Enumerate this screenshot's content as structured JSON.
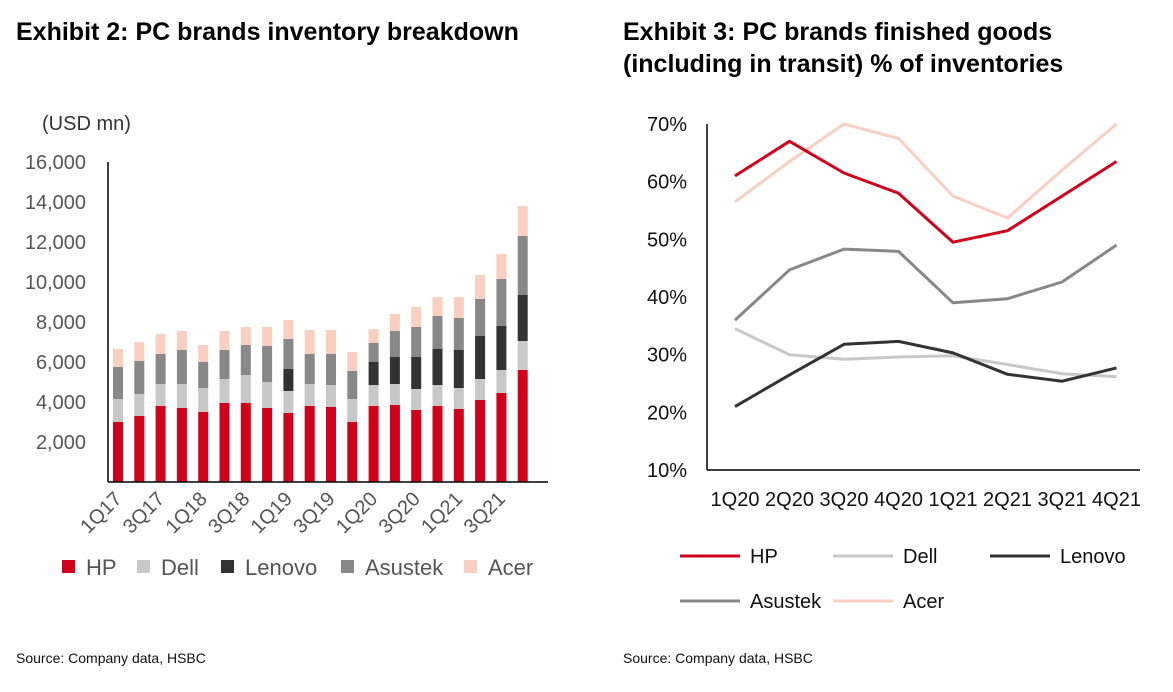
{
  "exhibit2": {
    "title": "Exhibit 2: PC brands inventory breakdown",
    "source": "Source: Company data, HSBC",
    "unit_label": "(USD mn)"
  },
  "exhibit3": {
    "title_line1": "Exhibit 3: PC brands finished goods",
    "title_line2": "(including in transit) % of inventories",
    "source": "Source: Company data, HSBC"
  },
  "colors": {
    "HP": "#d0021b",
    "Dell": "#c8c8c8",
    "Lenovo": "#333333",
    "Asustek": "#888888",
    "Acer": "#f9cfc2"
  },
  "chart_data": [
    {
      "type": "bar",
      "stacked": true,
      "ylabel": "(USD mn)",
      "ylim": [
        0,
        16000
      ],
      "yticks": [
        2000,
        4000,
        6000,
        8000,
        10000,
        12000,
        14000,
        16000
      ],
      "ytick_labels": [
        "2,000",
        "4,000",
        "6,000",
        "8,000",
        "10,000",
        "12,000",
        "14,000",
        "16,000"
      ],
      "categories": [
        "1Q17",
        "2Q17",
        "3Q17",
        "4Q17",
        "1Q18",
        "2Q18",
        "3Q18",
        "4Q18",
        "1Q19",
        "2Q19",
        "3Q19",
        "4Q19",
        "1Q20",
        "2Q20",
        "3Q20",
        "4Q20",
        "1Q21",
        "2Q21",
        "3Q21",
        "4Q21"
      ],
      "xtick_labels": [
        "1Q17",
        "",
        "3Q17",
        "",
        "1Q18",
        "",
        "3Q18",
        "",
        "1Q19",
        "",
        "3Q19",
        "",
        "1Q20",
        "",
        "3Q20",
        "",
        "1Q21",
        "",
        "3Q21",
        ""
      ],
      "series": [
        {
          "name": "HP",
          "values": [
            3000,
            3300,
            3800,
            3700,
            3500,
            3950,
            3950,
            3700,
            3450,
            3800,
            3750,
            3000,
            3800,
            3850,
            3600,
            3800,
            3650,
            4100,
            4450,
            5600
          ]
        },
        {
          "name": "Dell",
          "values": [
            1150,
            1100,
            1100,
            1200,
            1200,
            1200,
            1400,
            1300,
            1100,
            1100,
            1100,
            1150,
            1050,
            1050,
            1050,
            1050,
            1050,
            1050,
            1150,
            1450
          ]
        },
        {
          "name": "Lenovo",
          "values": [
            0,
            0,
            0,
            0,
            0,
            0,
            0,
            0,
            1100,
            0,
            0,
            0,
            1150,
            1350,
            1600,
            1800,
            1900,
            2150,
            2200,
            2300
          ]
        },
        {
          "name": "Asustek",
          "values": [
            1600,
            1650,
            1500,
            1700,
            1300,
            1450,
            1500,
            1800,
            1500,
            1500,
            1550,
            1400,
            950,
            1300,
            1500,
            1650,
            1600,
            1850,
            2350,
            2950
          ]
        },
        {
          "name": "Acer",
          "values": [
            900,
            950,
            1000,
            950,
            850,
            950,
            900,
            950,
            950,
            1200,
            1200,
            950,
            700,
            850,
            1000,
            950,
            1050,
            1200,
            1250,
            1500
          ]
        }
      ],
      "legend": "bottom"
    },
    {
      "type": "line",
      "ylim": [
        0.1,
        0.7
      ],
      "yticks": [
        0.1,
        0.2,
        0.3,
        0.4,
        0.5,
        0.6,
        0.7
      ],
      "ytick_labels": [
        "10%",
        "20%",
        "30%",
        "40%",
        "50%",
        "60%",
        "70%"
      ],
      "categories": [
        "1Q20",
        "2Q20",
        "3Q20",
        "4Q20",
        "1Q21",
        "2Q21",
        "3Q21",
        "4Q21"
      ],
      "series": [
        {
          "name": "HP",
          "values": [
            0.61,
            0.67,
            0.615,
            0.58,
            0.495,
            0.515,
            0.575,
            0.635
          ]
        },
        {
          "name": "Dell",
          "values": [
            0.345,
            0.3,
            0.292,
            0.296,
            0.298,
            0.283,
            0.267,
            0.262
          ]
        },
        {
          "name": "Lenovo",
          "values": [
            0.21,
            0.265,
            0.318,
            0.323,
            0.303,
            0.266,
            0.254,
            0.277
          ]
        },
        {
          "name": "Asustek",
          "values": [
            0.36,
            0.447,
            0.483,
            0.479,
            0.39,
            0.397,
            0.426,
            0.49
          ]
        },
        {
          "name": "Acer",
          "values": [
            0.565,
            0.635,
            0.705,
            0.675,
            0.575,
            0.537,
            0.62,
            0.71
          ]
        }
      ],
      "legend": "bottom"
    }
  ]
}
